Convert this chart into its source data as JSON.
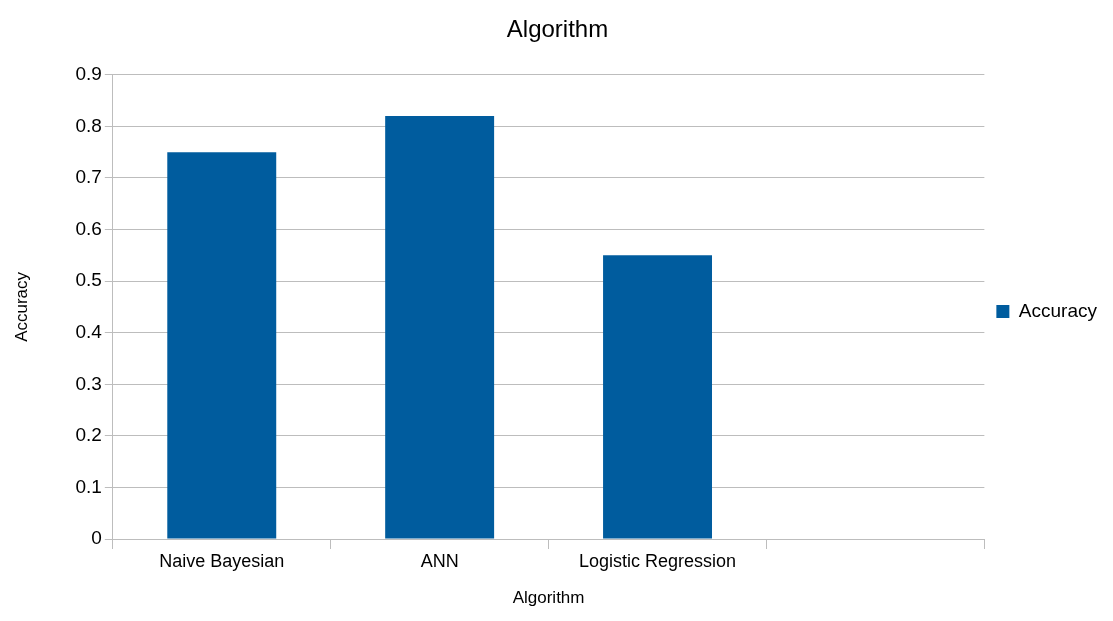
{
  "chart_data": {
    "type": "bar",
    "title": "Algorithm",
    "xlabel": "Algorithm",
    "ylabel": "Accuracy",
    "categories": [
      "Naive Bayesian",
      "ANN",
      "Logistic Regression",
      null
    ],
    "series": [
      {
        "name": "Accuracy",
        "color": "#005c9e",
        "values": [
          0.75,
          0.82,
          0.55,
          null
        ]
      }
    ],
    "ylim": [
      0,
      0.9
    ],
    "yticks": [
      0,
      0.1,
      0.2,
      0.3,
      0.4,
      0.5,
      0.6,
      0.7,
      0.8,
      0.9
    ],
    "grid": "y",
    "legend": "right"
  }
}
